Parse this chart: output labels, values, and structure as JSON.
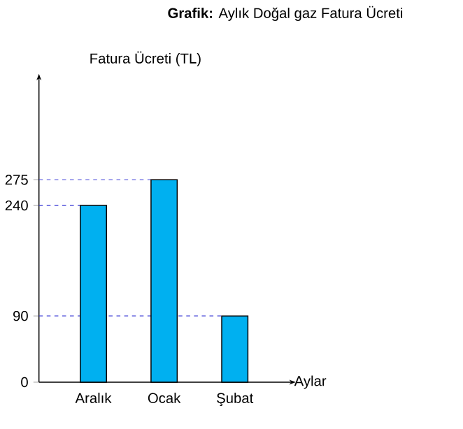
{
  "chart_data": {
    "type": "bar",
    "title": "**Grafik:** Aylık Doğal gaz Fatura Ücreti",
    "ylabel": "Fatura Ücreti (TL)",
    "xlabel": "Aylar",
    "categories": [
      "Aralık",
      "Ocak",
      "Şubat"
    ],
    "values": [
      240,
      275,
      90
    ],
    "color": "#00b0f0",
    "ylim": [
      0,
      410
    ],
    "yticks": [
      0,
      90,
      240,
      275
    ],
    "ref_lines": [
      {
        "axis": "y",
        "value": 275,
        "color": "#3a3ad6",
        "line_style": "dashed"
      },
      {
        "axis": "y",
        "value": 240,
        "color": "#3a3ad6",
        "line_style": "dashed"
      },
      {
        "axis": "y",
        "value": 90,
        "color": "#3a3ad6",
        "line_style": "dashed"
      }
    ]
  }
}
